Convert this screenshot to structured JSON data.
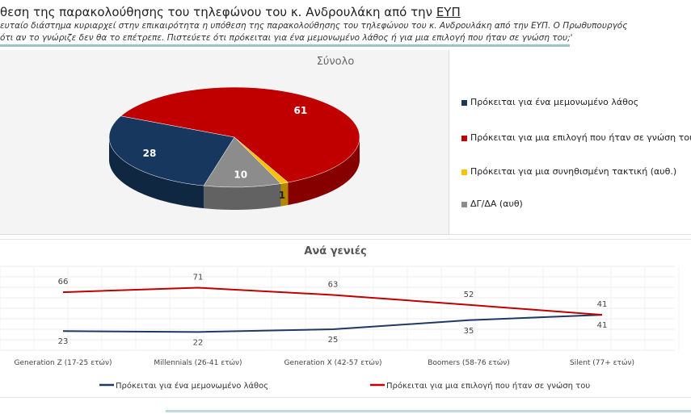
{
  "header": {
    "title_prefix": "θεση της παρακολούθησης του τηλεφώνου του κ. Ανδρουλάκη από την ",
    "title_link": "ΕΥΠ",
    "question_line1": "ευταίο διάστημα κυριαρχεί στην επικαιρότητα η υπόθεση της παρακολούθησης του τηλεφώνου του κ. Ανδρουλάκη από την ΕΥΠ. Ο Πρωθυπουργός",
    "question_line2": "ότι αν το γνώριζε δεν θα το επέτρεπε. Πιστεύετε ότι πρόκειται για ένα μεμονωμένο λάθος ή για μια επιλογή που ήταν σε γνώση του;'"
  },
  "chart_data": [
    {
      "type": "pie",
      "title": "Σύνολο",
      "legend_position": "right",
      "slices": [
        {
          "label": "Πρόκειται για μια επιλογή που ήταν σε γνώση του",
          "value": 61,
          "color": "#c00000"
        },
        {
          "label": "Πρόκειται για μια συνηθισμένη τακτική (αυθ.)",
          "value": 1,
          "color": "#ffc000"
        },
        {
          "label": "ΔΓ/ΔΑ (αυθ)",
          "value": 10,
          "color": "#8c8c8c"
        },
        {
          "label": "Πρόκειται για ένα μεμονωμένο λάθος",
          "value": 28,
          "color": "#17375e"
        }
      ],
      "legend_order": [
        3,
        0,
        1,
        2
      ]
    },
    {
      "type": "line",
      "title": "Ανά γενιές",
      "categories": [
        "Generation Z (17-25 ετών)",
        "Millennials (26-41 ετών)",
        "Generation X (42-57 ετών)",
        "Boomers (58-76 ετών)",
        "Silent (77+ ετών)"
      ],
      "series": [
        {
          "name": "Πρόκειται για ένα μεμονωμένο λάθος",
          "values": [
            23,
            22,
            25,
            35,
            41
          ],
          "color": "#1f3864"
        },
        {
          "name": "Πρόκειται για μια  επιλογή που ήταν σε γνώση του",
          "values": [
            66,
            71,
            63,
            52,
            41
          ],
          "color": "#c00000"
        }
      ],
      "legend_position": "bottom",
      "grid": true
    }
  ]
}
